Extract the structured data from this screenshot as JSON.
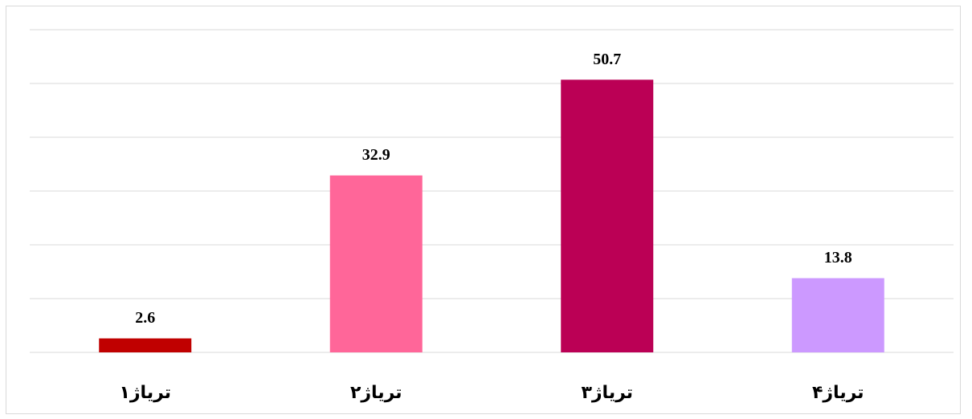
{
  "chart_data": {
    "type": "bar",
    "categories": [
      "تریاژ۱",
      "تریاژ۲",
      "تریاژ۳",
      "تریاژ۴"
    ],
    "values": [
      2.6,
      32.9,
      50.7,
      13.8
    ],
    "colors": [
      "#c00000",
      "#ff6699",
      "#bb0055",
      "#cc99ff"
    ],
    "ylim": [
      0,
      60
    ],
    "yticks": [
      0,
      10,
      20,
      30,
      40,
      50,
      60
    ],
    "grid": true
  }
}
